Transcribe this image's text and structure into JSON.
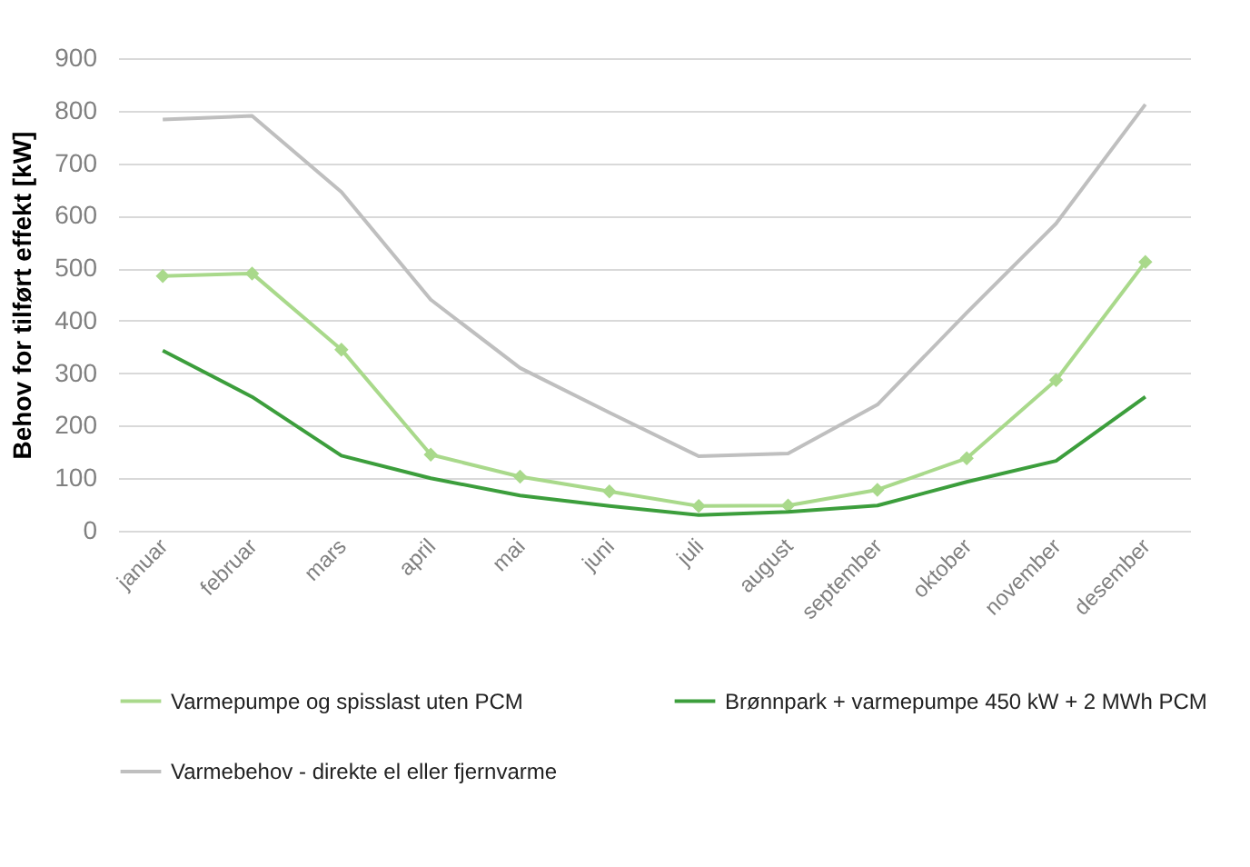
{
  "chart_data": {
    "type": "line",
    "ylabel": "Behov for tilført effekt [kW]",
    "categories": [
      "januar",
      "februar",
      "mars",
      "april",
      "mai",
      "juni",
      "juli",
      "august",
      "september",
      "oktober",
      "november",
      "desember"
    ],
    "series": [
      {
        "name": "Varmepumpe og spisslast uten PCM",
        "color": "#a9d98b",
        "marker": "diamond",
        "values": [
          485,
          490,
          345,
          145,
          103,
          75,
          47,
          48,
          78,
          138,
          287,
          512
        ]
      },
      {
        "name": "Brønnpark + varmepumpe 450 kW + 2 MWh PCM",
        "color": "#3c9e3c",
        "values": [
          343,
          255,
          143,
          100,
          67,
          47,
          30,
          36,
          48,
          93,
          133,
          255
        ]
      },
      {
        "name": "Varmebehov - direkte el eller fjernvarme",
        "color": "#bfbfbf",
        "values": [
          783,
          790,
          645,
          440,
          310,
          225,
          142,
          147,
          240,
          415,
          585,
          812
        ]
      }
    ],
    "ylim": [
      0,
      900
    ],
    "yticks": [
      0,
      100,
      200,
      300,
      400,
      500,
      600,
      700,
      800,
      900
    ],
    "grid": "y",
    "legend": "bottom"
  }
}
